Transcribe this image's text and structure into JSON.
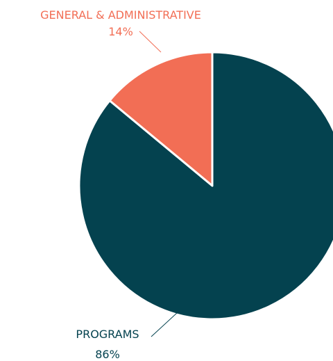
{
  "chart_data": {
    "type": "pie",
    "slices": [
      {
        "label": "PROGRAMS",
        "value_label": "86%",
        "value": 86,
        "color": "#04424F"
      },
      {
        "label": "GENERAL & ADMINISTRATIVE",
        "value_label": "14%",
        "value": 14,
        "color": "#F26E55"
      }
    ]
  }
}
